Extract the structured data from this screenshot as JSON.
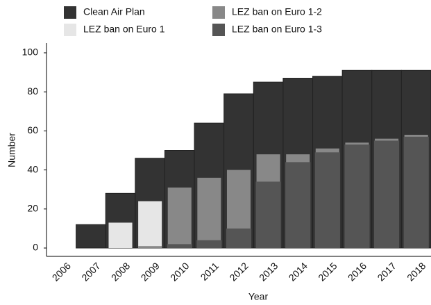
{
  "chart_data": {
    "type": "bar",
    "x_label": "Year",
    "y_label": "Number",
    "categories": [
      "2006",
      "2007",
      "2008",
      "2009",
      "2010",
      "2011",
      "2012",
      "2013",
      "2014",
      "2015",
      "2016",
      "2017",
      "2018"
    ],
    "series": [
      {
        "name": "Clean Air Plan",
        "color": "#333333",
        "values": [
          0,
          12,
          28,
          46,
          50,
          64,
          79,
          85,
          87,
          88,
          91,
          91,
          91
        ]
      },
      {
        "name": "LEZ ban on Euro 1",
        "color": "#e6e6e6",
        "values": [
          null,
          null,
          13,
          24,
          null,
          null,
          null,
          null,
          null,
          null,
          null,
          null,
          null
        ]
      },
      {
        "name": "LEZ ban on Euro 1-2",
        "color": "#888888",
        "values": [
          null,
          null,
          null,
          1,
          31,
          36,
          40,
          48,
          48,
          51,
          54,
          56,
          58
        ]
      },
      {
        "name": "LEZ ban on Euro 1-3",
        "color": "#555555",
        "values": [
          null,
          null,
          null,
          null,
          2,
          4,
          10,
          34,
          44,
          49,
          53,
          55,
          57
        ]
      }
    ],
    "ylim": [
      0,
      100
    ],
    "yticks": [
      0,
      20,
      40,
      60,
      80,
      100
    ]
  }
}
